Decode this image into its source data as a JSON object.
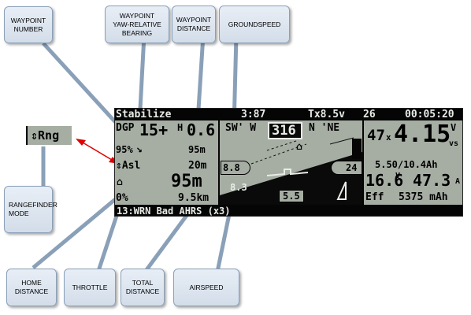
{
  "callouts": {
    "waypoint_number": "WAYPOINT\nNUMBER",
    "waypoint_bearing": "WAYPOINT\nYAW-RELATIVE\nBEARING",
    "waypoint_distance": "WAYPOINT\nDISTANCE",
    "groundspeed": "GROUNDSPEED",
    "rangefinder_mode": "RANGEFINDER\nMODE",
    "home_distance": "HOME\nDISTANCE",
    "throttle": "THROTTLE",
    "total_distance": "TOTAL\nDISTANCE",
    "airspeed": "AIRSPEED"
  },
  "rangefinder_widget": "⇕Rng",
  "osd": {
    "top_bar": {
      "mode": "Stabilize",
      "gps": "3:87",
      "tx": "Tx8.5v",
      "rssi": "26",
      "timer": "00:05:20"
    },
    "left": {
      "wp_label": "DGP",
      "wp_number": "15+",
      "wp_bearing_marker": "H",
      "wp_distance": "0.6",
      "throttle_pct": "95%",
      "arrow": "↘",
      "distance_m": "95m",
      "alt_label": "⇕Asl",
      "alt_value": "20m",
      "home_label": "⌂",
      "home_distance": "95m",
      "throttle_zero": "0%",
      "total_distance": "9.5km"
    },
    "center": {
      "heading_tape": "SW' W",
      "heading": "316",
      "heading_right": "N 'NE",
      "speed_left": "8.8",
      "speed_right": "24",
      "airspeed": "8.3",
      "speed_small": "5.5"
    },
    "right": {
      "climb_prefix": "47",
      "climb_mid": "x",
      "vspeed": "4.15",
      "vspeed_unit_v": "V",
      "vspeed_unit_vs": "vs",
      "battery": "5.50/10.4Ah",
      "cell_v": "16.6",
      "cell_unit": "V",
      "current": "47.3",
      "current_unit": "A",
      "eff_label": "Eff",
      "consumed": "5375 mAh"
    },
    "message": "13:WRN Bad AHRS (x3)"
  }
}
